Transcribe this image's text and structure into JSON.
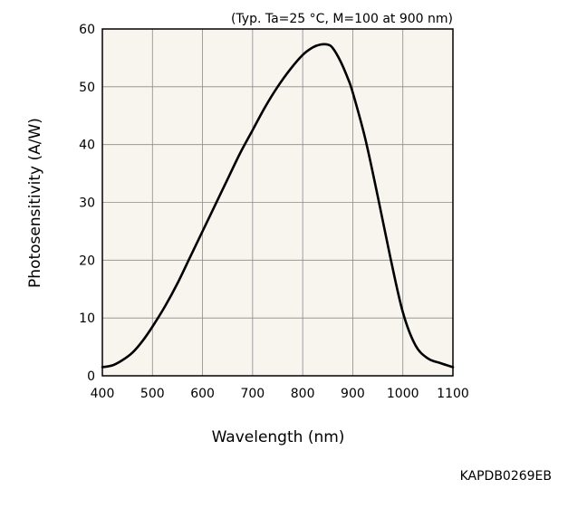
{
  "chart_data": {
    "type": "line",
    "title": "",
    "annotation": "(Typ. Ta=25 °C, M=100 at 900 nm)",
    "xlabel": "Wavelength (nm)",
    "ylabel": "Photosensitivity (A/W)",
    "xlim": [
      400,
      1100
    ],
    "ylim": [
      0,
      60
    ],
    "xticks": [
      400,
      500,
      600,
      700,
      800,
      900,
      1000,
      1100
    ],
    "yticks": [
      0,
      10,
      20,
      30,
      40,
      50,
      60
    ],
    "grid": true,
    "plot_background": "#f7f5ee",
    "line_color": "#000000",
    "series": [
      {
        "x": [
          400,
          420,
          440,
          460,
          480,
          500,
          525,
          550,
          575,
          600,
          625,
          650,
          675,
          700,
          725,
          750,
          775,
          800,
          820,
          835,
          850,
          860,
          875,
          890,
          900,
          925,
          950,
          975,
          1000,
          1025,
          1050,
          1075,
          1100
        ],
        "y": [
          1.5,
          1.8,
          2.7,
          4.0,
          6.0,
          8.5,
          12.0,
          16.0,
          20.5,
          25.0,
          29.5,
          34.0,
          38.5,
          42.5,
          46.5,
          50.0,
          53.0,
          55.5,
          56.8,
          57.3,
          57.3,
          56.7,
          54.5,
          51.5,
          49.0,
          41.0,
          31.0,
          20.5,
          11.0,
          5.3,
          3.0,
          2.2,
          1.5
        ]
      }
    ]
  },
  "figure_code": "KAPDB0269EB"
}
